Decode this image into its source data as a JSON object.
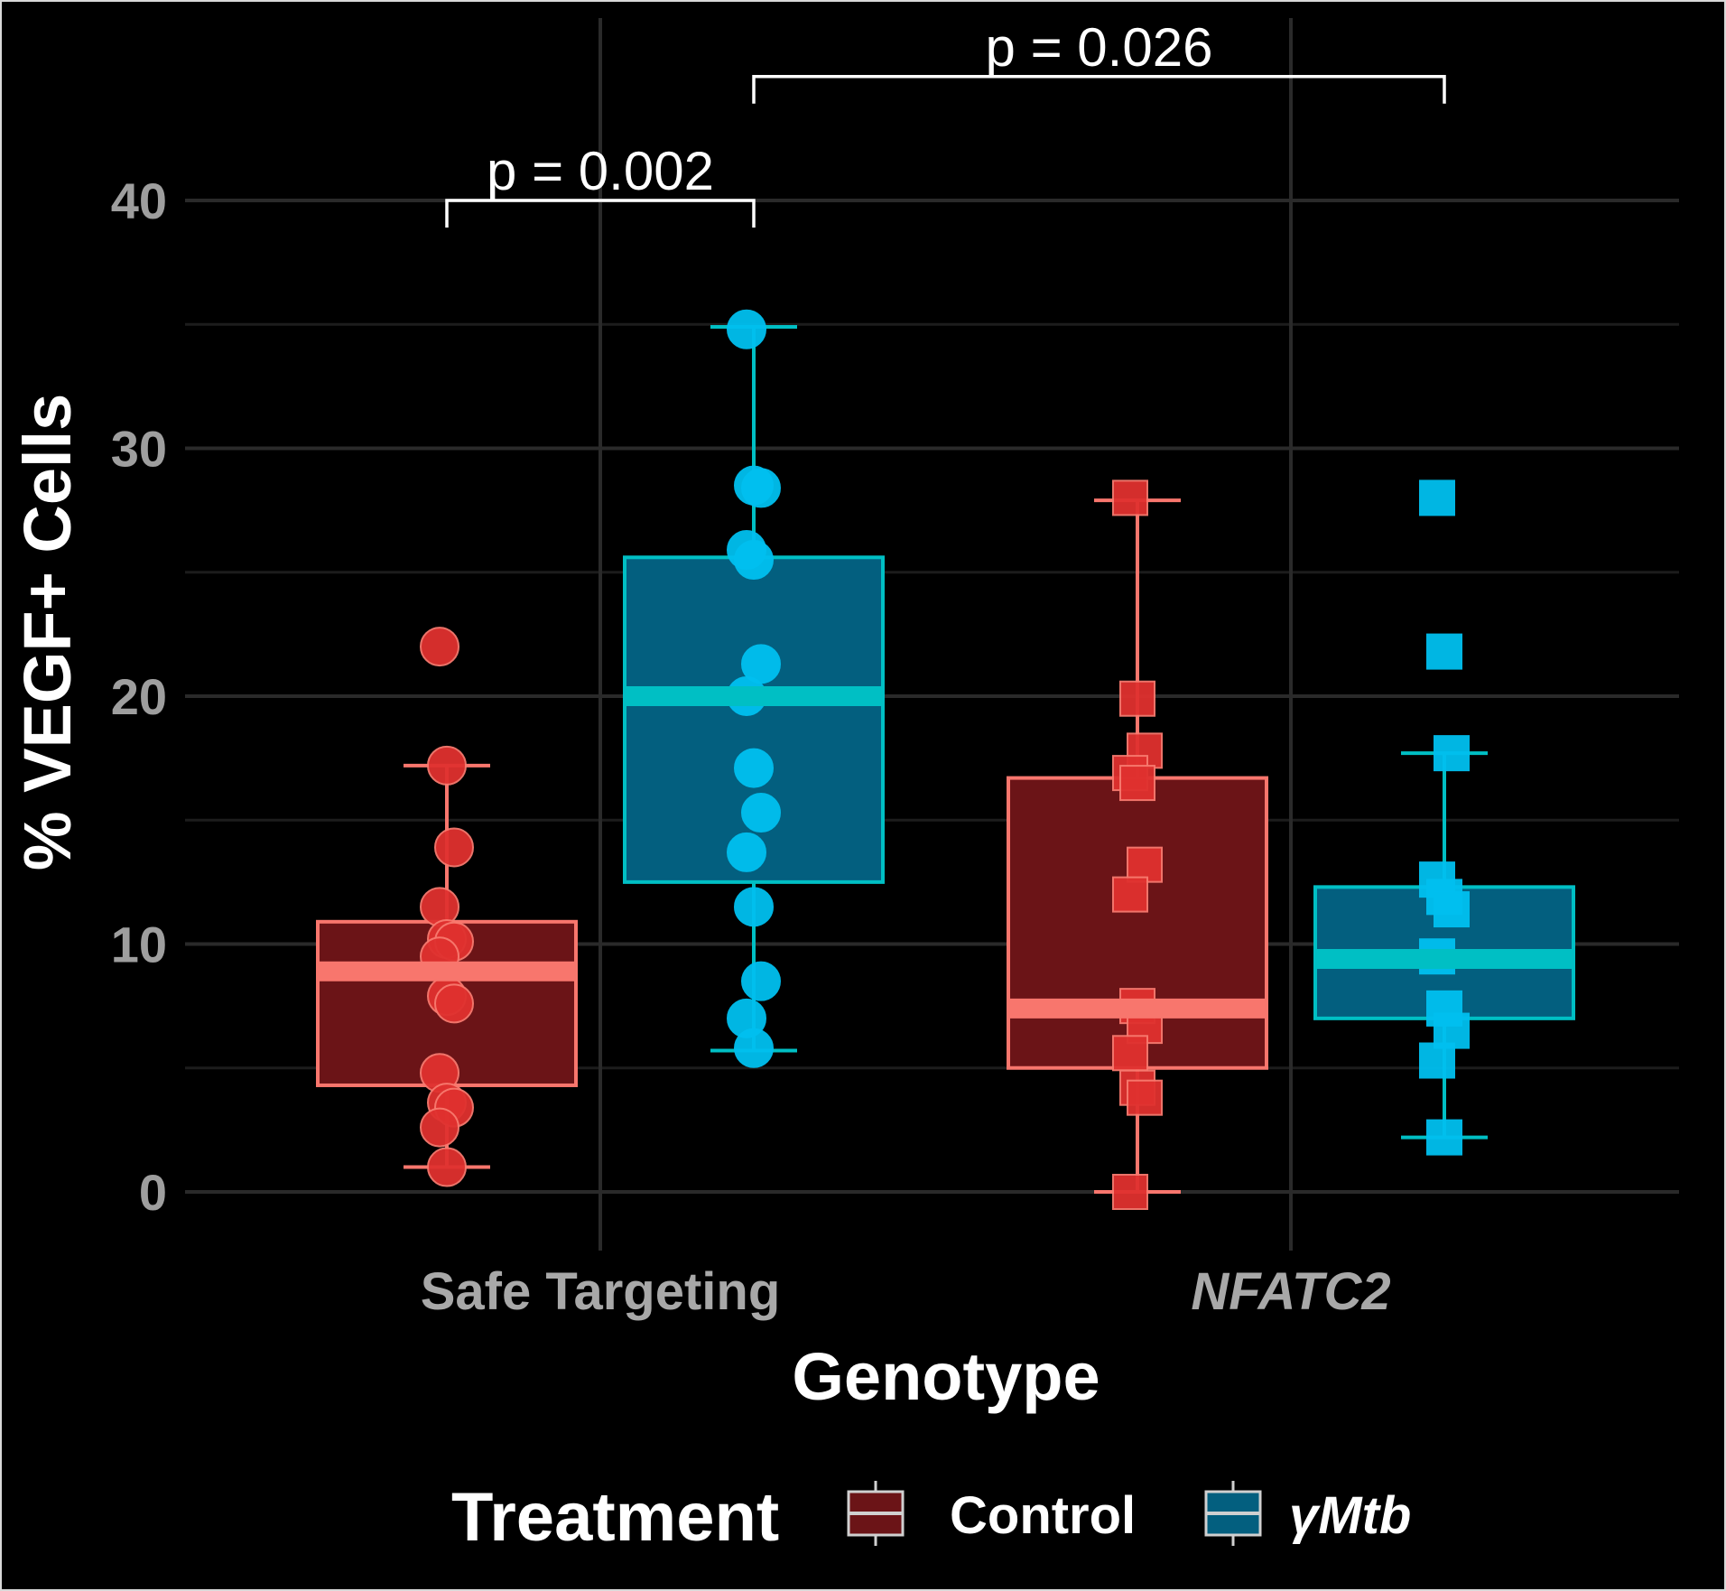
{
  "chart_data": {
    "type": "box",
    "xlabel": "Genotype",
    "ylabel": "% VEGF+ Cells",
    "categories": [
      "Safe Targeting",
      "NFATC2"
    ],
    "category_italic": [
      false,
      true
    ],
    "ylim": [
      -2,
      45
    ],
    "yticks": [
      0,
      10,
      20,
      30,
      40
    ],
    "grid": true,
    "legend": {
      "title": "Treatment",
      "position": "bottom",
      "entries": [
        {
          "label": "Control",
          "italic": false
        },
        {
          "label": "γMtb",
          "italic": true
        }
      ]
    },
    "colors": {
      "background": "#000000",
      "grid": "#2a2a2a",
      "control_fill": "#6b1417",
      "control_line": "#f8766d",
      "control_point": "#e0312f",
      "mtb_fill": "#035f7f",
      "mtb_line": "#00bfc4",
      "mtb_point": "#00c0f0"
    },
    "series": [
      {
        "treatment": "Control",
        "category": "Safe Targeting",
        "shape": "circle",
        "box": {
          "min": 1.0,
          "q1": 4.3,
          "median": 8.9,
          "q3": 10.9,
          "max": 17.2
        },
        "points": [
          22.0,
          17.2,
          13.9,
          11.5,
          10.2,
          10.1,
          9.5,
          7.9,
          7.6,
          4.8,
          3.6,
          3.4,
          2.6,
          1.0
        ]
      },
      {
        "treatment": "γMtb",
        "category": "Safe Targeting",
        "shape": "circle",
        "box": {
          "min": 5.7,
          "q1": 12.5,
          "median": 20.0,
          "q3": 25.6,
          "max": 34.9
        },
        "points": [
          34.8,
          28.5,
          28.4,
          25.9,
          25.5,
          21.3,
          20.0,
          17.1,
          15.3,
          13.7,
          11.5,
          8.5,
          7.0,
          5.8
        ]
      },
      {
        "treatment": "Control",
        "category": "NFATC2",
        "shape": "square",
        "box": {
          "min": 0.0,
          "q1": 5.0,
          "median": 7.4,
          "q3": 16.7,
          "max": 27.9
        },
        "points": [
          28.0,
          19.9,
          17.8,
          16.9,
          16.5,
          13.2,
          12.0,
          7.5,
          6.7,
          5.6,
          4.2,
          3.8,
          0.0
        ]
      },
      {
        "treatment": "γMtb",
        "category": "NFATC2",
        "shape": "square",
        "box": {
          "min": 2.2,
          "q1": 7.0,
          "median": 9.4,
          "q3": 12.3,
          "max": 17.7
        },
        "points": [
          28.0,
          21.8,
          17.7,
          12.6,
          11.9,
          11.4,
          9.5,
          7.4,
          6.5,
          5.3,
          2.2
        ]
      }
    ],
    "annotations": [
      {
        "text": "p = 0.002",
        "from": {
          "category": "Safe Targeting",
          "treatment": "Control"
        },
        "to": {
          "category": "Safe Targeting",
          "treatment": "γMtb"
        },
        "y": 40.0
      },
      {
        "text": "p = 0.026",
        "from": {
          "category": "Safe Targeting",
          "treatment": "γMtb"
        },
        "to": {
          "category": "NFATC2",
          "treatment": "γMtb"
        },
        "y": 45.0
      }
    ]
  }
}
